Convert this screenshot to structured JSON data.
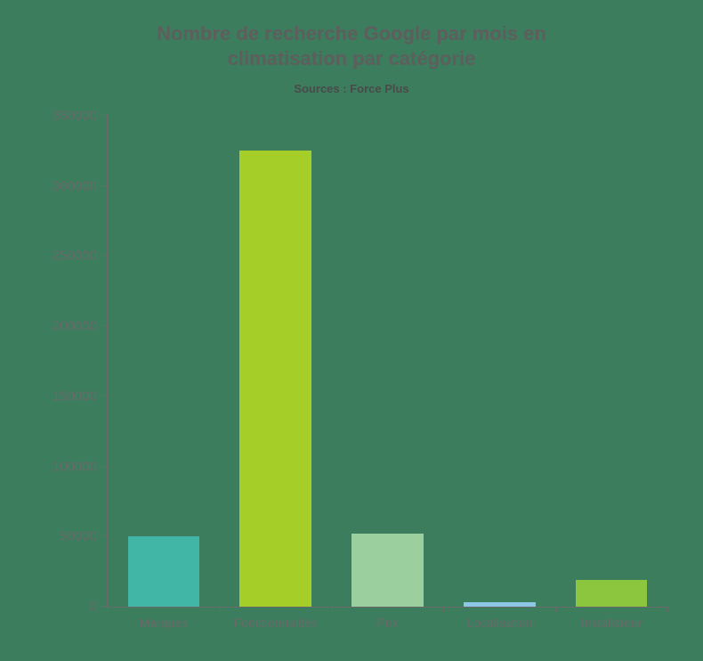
{
  "chart": {
    "type": "bar",
    "title": "Nombre de recherche Google par mois en climatisation par catégorie",
    "subtitle": "Sources : Force Plus",
    "title_fontsize": 22,
    "subtitle_fontsize": 13,
    "title_color": "#5e5e5e",
    "subtitle_color": "#4a4a4a",
    "label_color": "#6a6a6a",
    "axis_color": "#6a6a6a",
    "background_color": "#3b7d5c",
    "label_fontsize": 15,
    "xlabel_fontsize": 14,
    "ylim": [
      0,
      350000
    ],
    "ytick_step": 50000,
    "yticks": [
      0,
      50000,
      100000,
      150000,
      200000,
      250000,
      300000,
      350000
    ],
    "bar_width": 0.64,
    "categories": [
      "Marques",
      "Fonctionnalités",
      "Prix",
      "Localisation",
      "Installateur"
    ],
    "values": [
      50000,
      325000,
      52000,
      3000,
      19000
    ],
    "bar_colors": [
      "#41b6a6",
      "#a5cf28",
      "#9bcf9e",
      "#8ec6e6",
      "#8cc63f"
    ]
  }
}
